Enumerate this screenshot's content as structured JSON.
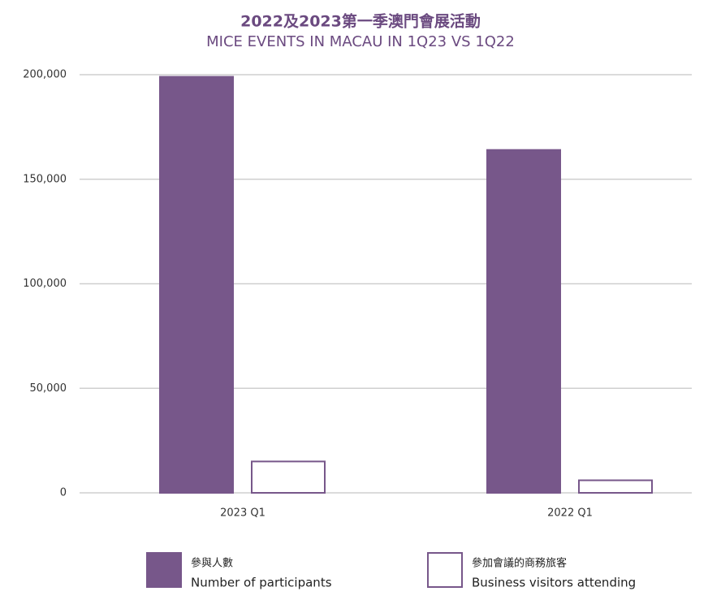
{
  "chart_data": {
    "type": "bar",
    "title": "2022及2023第一季澳門會展活動",
    "subtitle": "MICE EVENTS IN MACAU IN 1Q23 VS 1Q22",
    "categories": [
      "2023 Q1",
      "2022 Q1"
    ],
    "series": [
      {
        "name": "參與人數",
        "name_en": "Number of participants",
        "color": "#77578a",
        "fill": "#77578a",
        "values": [
          199000,
          164000
        ]
      },
      {
        "name": "參加會議的商務旅客",
        "name_en": "Business visitors attending",
        "color": "#77578a",
        "fill": "#ffffff",
        "values": [
          15000,
          6000
        ]
      }
    ],
    "ylim": [
      0,
      200000
    ],
    "yticks": [
      0,
      {
        "value": 50000,
        "label": "50,000"
      },
      {
        "value": 100000,
        "label": "100,000"
      },
      {
        "value": 150000,
        "label": "150,000"
      },
      {
        "value": 200000,
        "label": "200,000"
      }
    ],
    "grid": true
  }
}
